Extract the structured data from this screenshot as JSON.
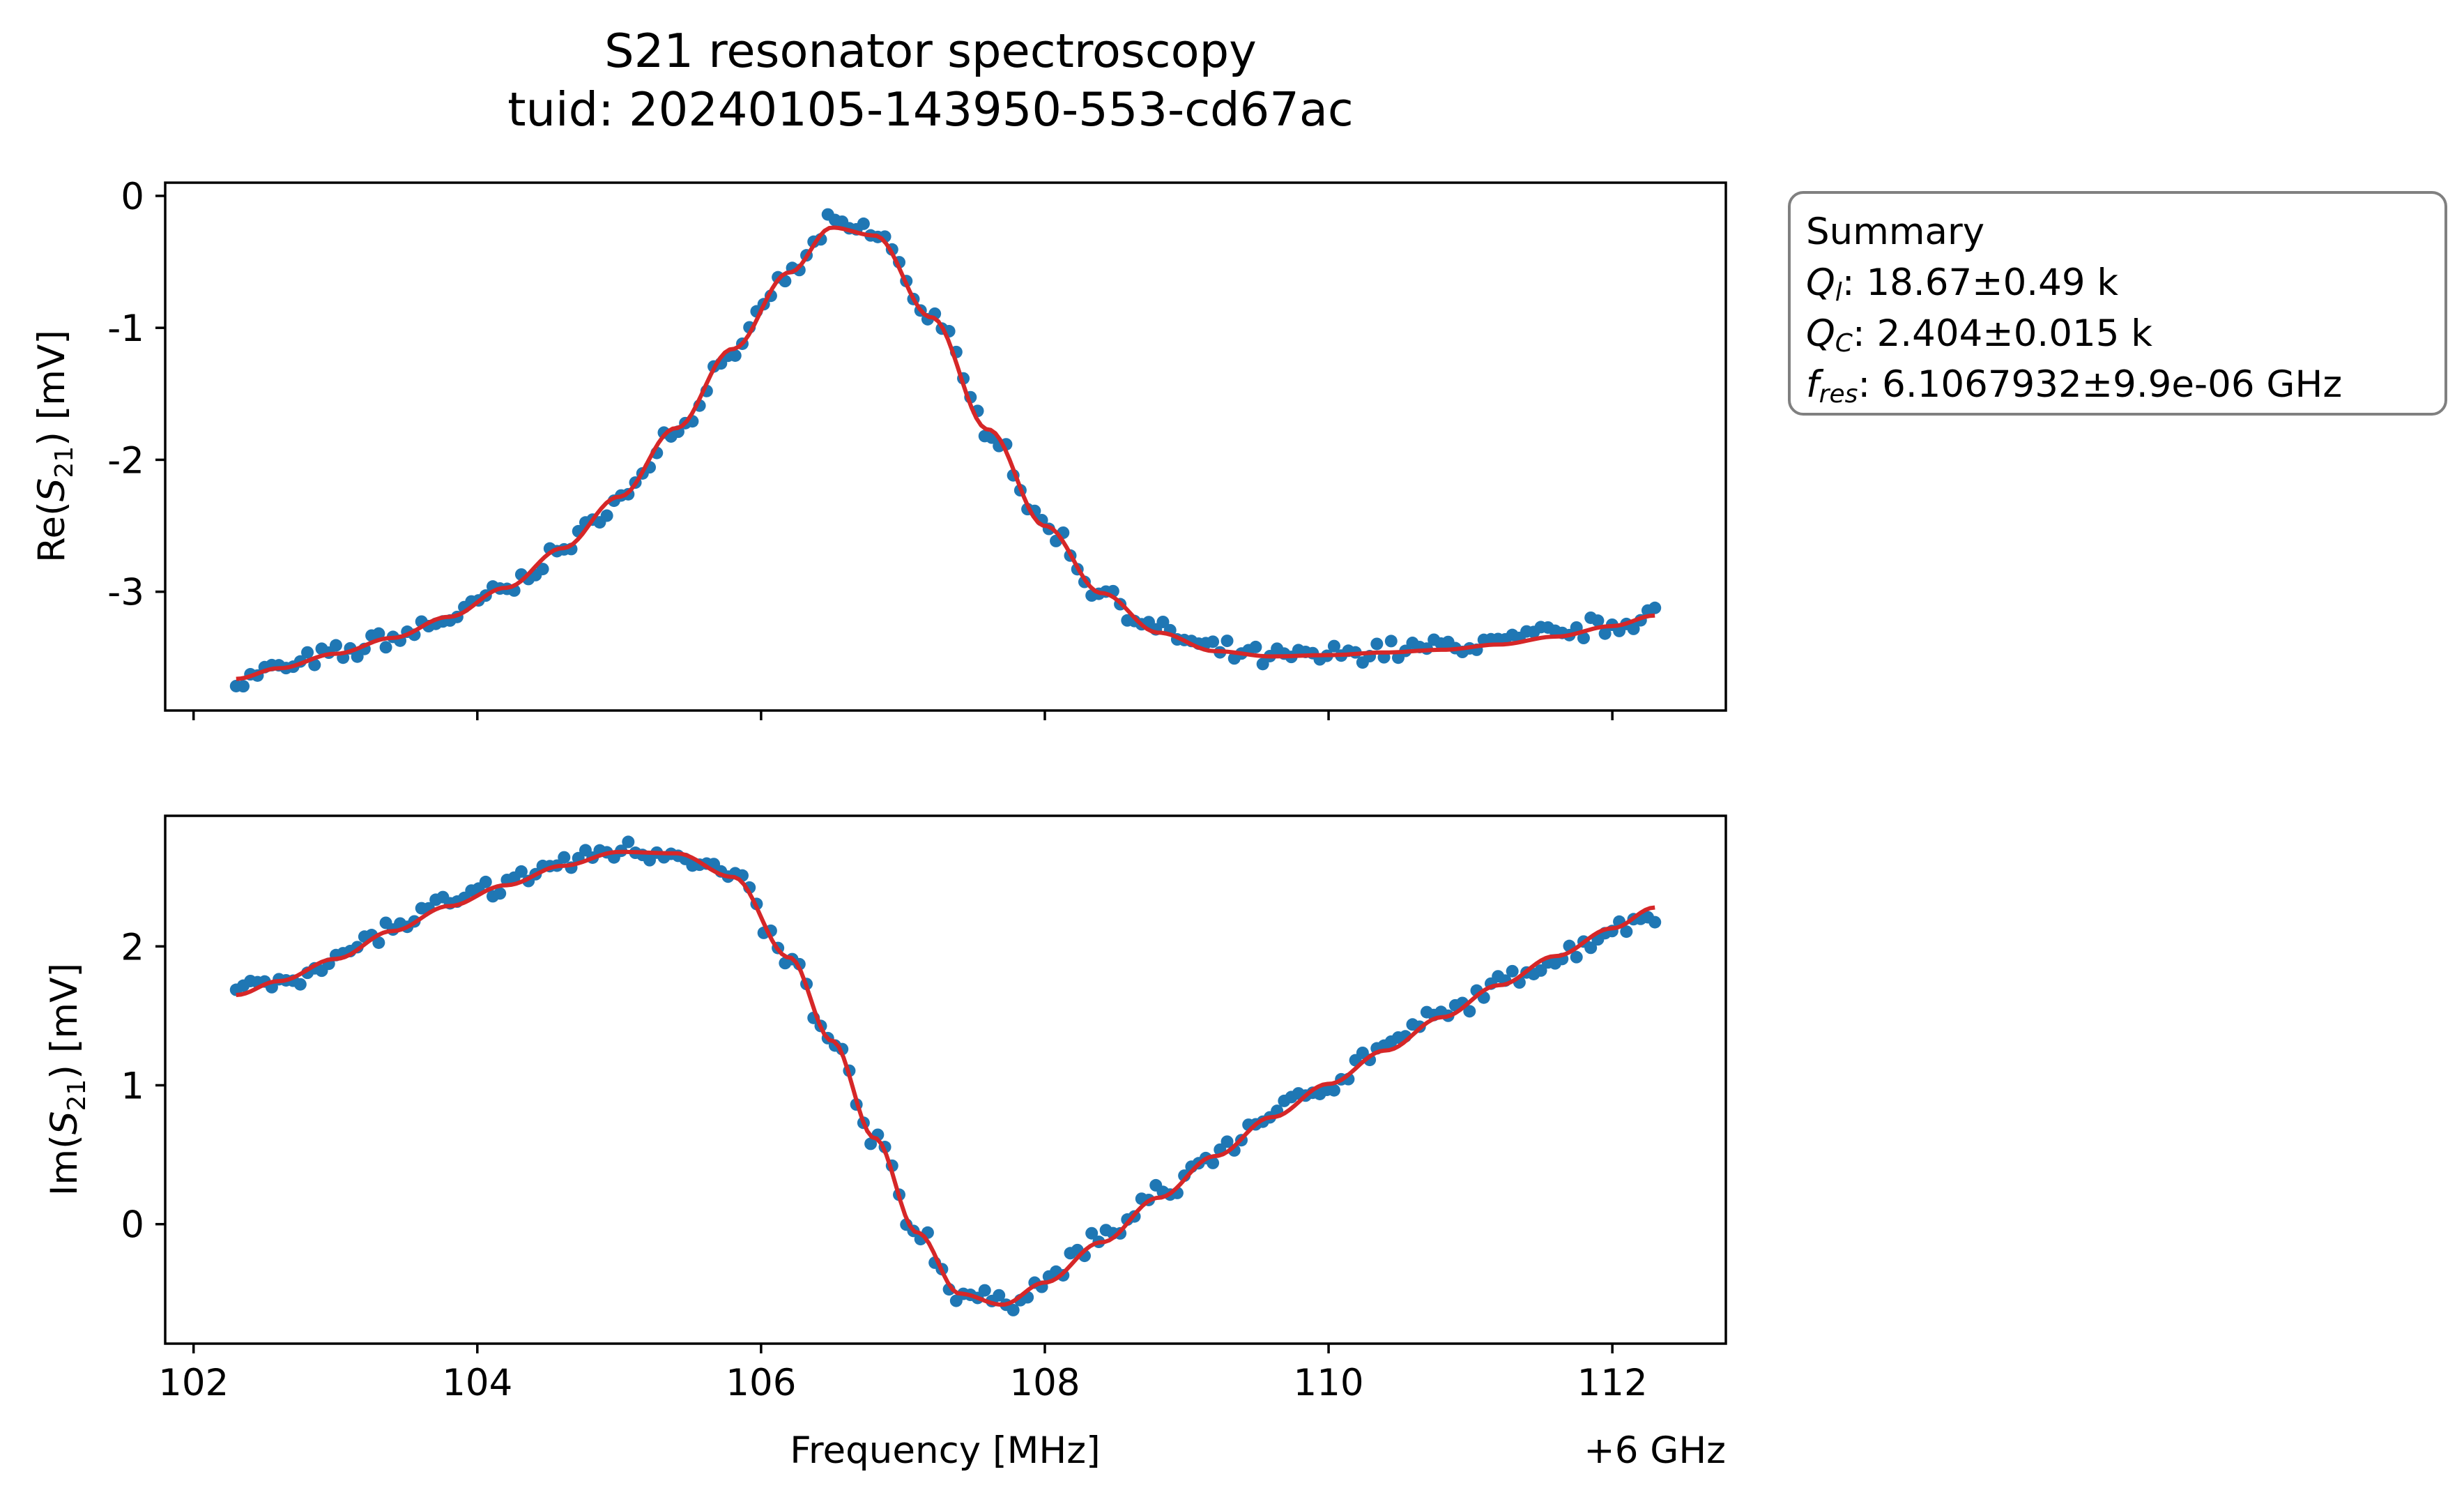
{
  "figure": {
    "title_line1": "S21 resonator spectroscopy",
    "title_line2": "tuid: 20240105-143950-553-cd67ac",
    "x_offset_label": "+6 GHz"
  },
  "summary": {
    "heading": "Summary",
    "ql_symbol": "Q",
    "ql_sub": "l",
    "ql_value": ": 18.67±0.49 k",
    "qc_symbol": "Q",
    "qc_sub": "C",
    "qc_value": ": 2.404±0.015 k",
    "fres_symbol": "f",
    "fres_sub": "res",
    "fres_value": ": 6.1067932±9.9e-06 GHz"
  },
  "colors": {
    "data": "#1f77b4",
    "fit": "#d62728",
    "box_edge": "#808080"
  },
  "chart_data": [
    {
      "type": "scatter",
      "panel": "top",
      "ylabel": "Re(S21) [mV]",
      "ylabel_main": "Re(",
      "ylabel_symbol": "S",
      "ylabel_sub": "21",
      "ylabel_tail": ") [mV]",
      "xlim": [
        101.8,
        112.8
      ],
      "ylim": [
        -3.9,
        0.1
      ],
      "xticks": [
        102,
        104,
        106,
        108,
        110,
        112
      ],
      "yticks": [
        0,
        -1,
        -2,
        -3
      ],
      "ytick_labels": [
        "0",
        "-1",
        "-2",
        "-3"
      ],
      "grid": false,
      "x": [
        102.3,
        102.6,
        103.0,
        103.4,
        103.8,
        104.2,
        104.6,
        105.0,
        105.4,
        105.8,
        106.2,
        106.5,
        106.8,
        107.2,
        107.6,
        108.0,
        108.4,
        108.8,
        109.2,
        109.6,
        110.0,
        110.4,
        110.8,
        111.2,
        111.6,
        112.0,
        112.3
      ],
      "series": [
        {
          "name": "data",
          "values": [
            -3.68,
            -3.58,
            -3.48,
            -3.35,
            -3.2,
            -2.98,
            -2.68,
            -2.3,
            -1.78,
            -1.18,
            -0.6,
            -0.22,
            -0.28,
            -0.9,
            -1.75,
            -2.5,
            -3.0,
            -3.3,
            -3.45,
            -3.5,
            -3.48,
            -3.44,
            -3.42,
            -3.38,
            -3.32,
            -3.25,
            -3.15
          ]
        },
        {
          "name": "fit",
          "values": [
            -3.66,
            -3.58,
            -3.47,
            -3.35,
            -3.19,
            -2.97,
            -2.67,
            -2.28,
            -1.76,
            -1.16,
            -0.58,
            -0.24,
            -0.3,
            -0.92,
            -1.77,
            -2.5,
            -3.01,
            -3.31,
            -3.45,
            -3.49,
            -3.48,
            -3.46,
            -3.44,
            -3.4,
            -3.34,
            -3.26,
            -3.18
          ]
        }
      ]
    },
    {
      "type": "scatter",
      "panel": "bottom",
      "xlabel": "Frequency [MHz]",
      "ylabel": "Im(S21) [mV]",
      "ylabel_main": "Im(",
      "ylabel_symbol": "S",
      "ylabel_sub": "21",
      "ylabel_tail": ") [mV]",
      "xlim": [
        101.8,
        112.8
      ],
      "ylim": [
        -0.86,
        2.94
      ],
      "xticks": [
        102,
        104,
        106,
        108,
        110,
        112
      ],
      "xtick_labels": [
        "102",
        "104",
        "106",
        "108",
        "110",
        "112"
      ],
      "yticks": [
        2,
        1,
        0
      ],
      "ytick_labels": [
        "2",
        "1",
        "0"
      ],
      "grid": false,
      "x": [
        102.3,
        102.6,
        103.0,
        103.4,
        103.8,
        104.2,
        104.6,
        105.0,
        105.4,
        105.8,
        106.2,
        106.5,
        106.8,
        107.1,
        107.4,
        107.7,
        108.0,
        108.4,
        108.8,
        109.2,
        109.6,
        110.0,
        110.4,
        110.8,
        111.2,
        111.6,
        112.0,
        112.3
      ],
      "series": [
        {
          "name": "data",
          "values": [
            1.67,
            1.75,
            1.92,
            2.13,
            2.3,
            2.45,
            2.6,
            2.7,
            2.68,
            2.5,
            1.9,
            1.3,
            0.6,
            -0.05,
            -0.5,
            -0.58,
            -0.4,
            -0.1,
            0.2,
            0.5,
            0.8,
            1.02,
            1.28,
            1.5,
            1.72,
            1.92,
            2.12,
            2.25
          ]
        },
        {
          "name": "fit",
          "values": [
            1.65,
            1.75,
            1.91,
            2.11,
            2.29,
            2.44,
            2.58,
            2.68,
            2.67,
            2.5,
            1.92,
            1.32,
            0.62,
            -0.06,
            -0.5,
            -0.58,
            -0.42,
            -0.13,
            0.19,
            0.49,
            0.77,
            1.01,
            1.25,
            1.49,
            1.72,
            1.93,
            2.13,
            2.28
          ]
        }
      ]
    }
  ]
}
